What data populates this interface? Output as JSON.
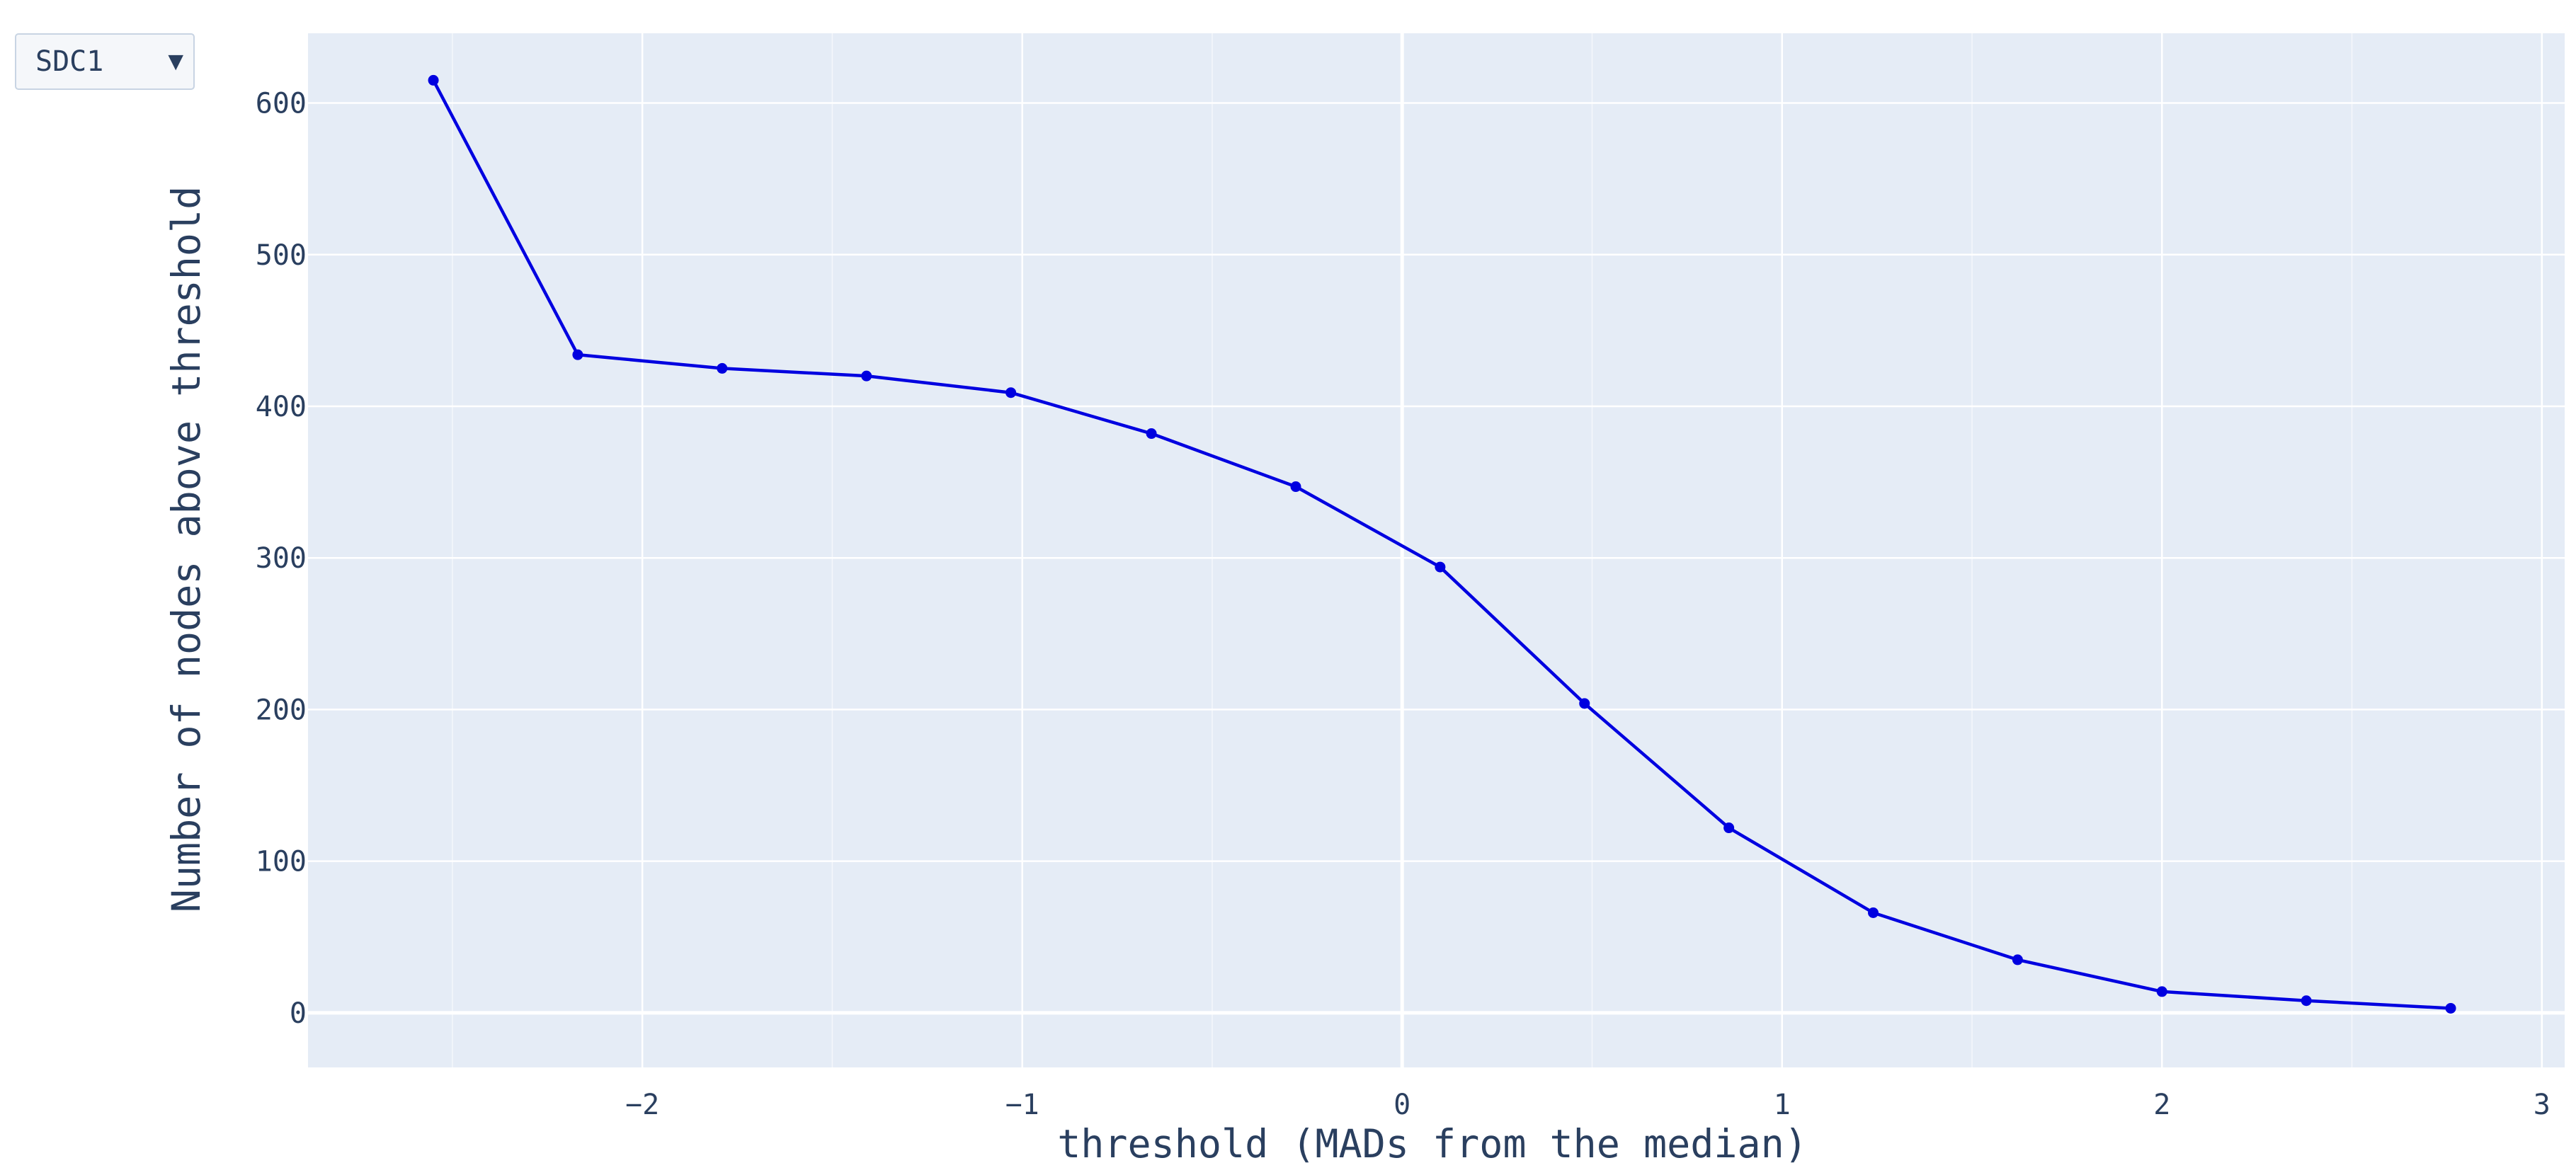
{
  "controls": {
    "dropdown": {
      "selected": "SDC1",
      "arrow": "▼"
    }
  },
  "colors": {
    "plot_background": "#e5ecf6",
    "grid": "#ffffff",
    "line": "#0000e0",
    "text": "#2a3f5f"
  },
  "chart_data": {
    "type": "line",
    "title": "",
    "xlabel": "threshold (MADs from the median)",
    "ylabel": "Number of nodes above threshold",
    "xlim": [
      -2.88,
      3.06
    ],
    "ylim": [
      -36,
      646
    ],
    "xticks": [
      -2,
      -1,
      0,
      1,
      2,
      3
    ],
    "xtick_labels": [
      "−2",
      "−1",
      "0",
      "1",
      "2",
      "3"
    ],
    "yticks": [
      0,
      100,
      200,
      300,
      400,
      500,
      600
    ],
    "ytick_labels": [
      "0",
      "100",
      "200",
      "300",
      "400",
      "500",
      "600"
    ],
    "grid": true,
    "legend": "none",
    "series": [
      {
        "x": [
          -2.55,
          -2.17,
          -1.79,
          -1.41,
          -1.03,
          -0.66,
          -0.28,
          0.1,
          0.48,
          0.86,
          1.24,
          1.62,
          2.0,
          2.38,
          2.76
        ],
        "y": [
          615,
          434,
          425,
          420,
          409,
          382,
          347,
          294,
          204,
          122,
          66,
          35,
          14,
          8,
          3
        ]
      }
    ]
  }
}
